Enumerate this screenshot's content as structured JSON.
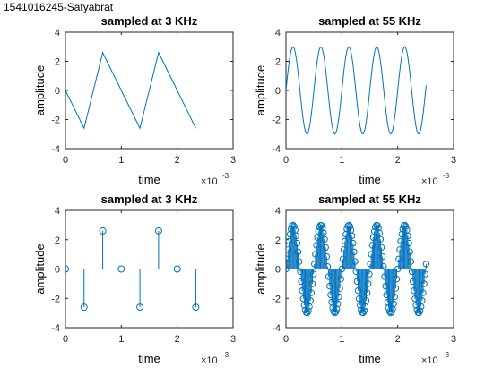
{
  "figure_title": "1541016245-Satyabrat",
  "colors": {
    "line": "#0072BD",
    "axis": "#262626",
    "background": "#ffffff"
  },
  "chart_data": [
    {
      "type": "line",
      "title": "sampled at 3 KHz",
      "xlabel": "time",
      "ylabel": "amplitude",
      "x_exponent": "×10",
      "x_exponent_power": "-3",
      "xlim": [
        0,
        0.003
      ],
      "ylim": [
        -4,
        4
      ],
      "xticks": [
        0,
        0.001,
        0.002,
        0.003
      ],
      "xtick_labels": [
        "0",
        "1",
        "2",
        "3"
      ],
      "yticks": [
        -4,
        -2,
        0,
        2,
        4
      ],
      "ytick_labels": [
        "-4",
        "-2",
        "0",
        "2",
        "4"
      ],
      "grid": false,
      "series": [
        {
          "x": [
            0,
            0.000333,
            0.000667,
            0.001,
            0.001333,
            0.001667,
            0.002,
            0.002333
          ],
          "y": [
            0,
            -2.6,
            2.6,
            0,
            -2.6,
            2.6,
            0,
            -2.6
          ]
        }
      ]
    },
    {
      "type": "line",
      "title": "sampled at 55 KHz",
      "xlabel": "time",
      "ylabel": "amplitude",
      "x_exponent": "×10",
      "x_exponent_power": "-3",
      "xlim": [
        0,
        0.003
      ],
      "ylim": [
        -4,
        4
      ],
      "xticks": [
        0,
        0.001,
        0.002,
        0.003
      ],
      "xtick_labels": [
        "0",
        "1",
        "2",
        "3"
      ],
      "yticks": [
        -4,
        -2,
        0,
        2,
        4
      ],
      "ytick_labels": [
        "-4",
        "-2",
        "0",
        "2",
        "4"
      ],
      "grid": false,
      "signal": {
        "amplitude": 3,
        "frequency_hz": 2000,
        "sample_rate_hz": 55000,
        "t_end": 0.0025
      }
    },
    {
      "type": "stem",
      "title": "sampled at 3 KHz",
      "xlabel": "time",
      "ylabel": "amplitude",
      "x_exponent": "×10",
      "x_exponent_power": "-3",
      "xlim": [
        0,
        0.003
      ],
      "ylim": [
        -4,
        4
      ],
      "xticks": [
        0,
        0.001,
        0.002,
        0.003
      ],
      "xtick_labels": [
        "0",
        "1",
        "2",
        "3"
      ],
      "yticks": [
        -4,
        -2,
        0,
        2,
        4
      ],
      "ytick_labels": [
        "-4",
        "-2",
        "0",
        "2",
        "4"
      ],
      "grid": false,
      "series": [
        {
          "x": [
            0,
            0.000333,
            0.000667,
            0.001,
            0.001333,
            0.001667,
            0.002,
            0.002333
          ],
          "y": [
            0,
            -2.6,
            2.6,
            0,
            -2.6,
            2.6,
            0,
            -2.6
          ]
        }
      ]
    },
    {
      "type": "stem",
      "title": "sampled at 55 KHz",
      "xlabel": "time",
      "ylabel": "amplitude",
      "x_exponent": "×10",
      "x_exponent_power": "-3",
      "xlim": [
        0,
        0.003
      ],
      "ylim": [
        -4,
        4
      ],
      "xticks": [
        0,
        0.001,
        0.002,
        0.003
      ],
      "xtick_labels": [
        "0",
        "1",
        "2",
        "3"
      ],
      "yticks": [
        -4,
        -2,
        0,
        2,
        4
      ],
      "ytick_labels": [
        "-4",
        "-2",
        "0",
        "2",
        "4"
      ],
      "grid": false,
      "signal": {
        "amplitude": 3,
        "frequency_hz": 2000,
        "sample_rate_hz": 55000,
        "t_end": 0.0025
      }
    }
  ]
}
